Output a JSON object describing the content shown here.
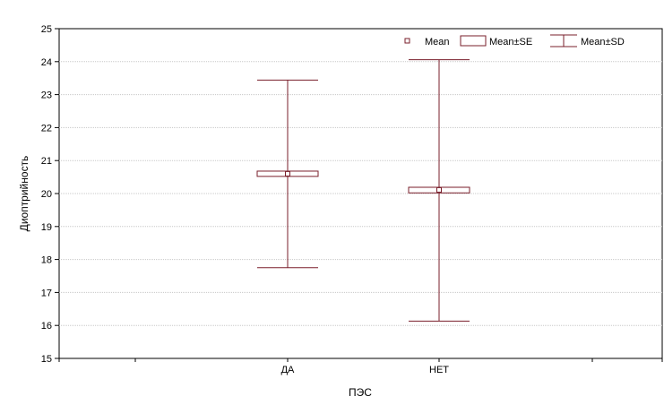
{
  "chart_data": {
    "type": "box",
    "title": "",
    "xlabel": "ПЭС",
    "ylabel": "Диоптрийность",
    "categories": [
      "ДА",
      "НЕТ"
    ],
    "series": [
      {
        "category": "ДА",
        "mean": 20.6,
        "se_low": 20.52,
        "se_high": 20.68,
        "sd_low": 17.75,
        "sd_high": 23.44
      },
      {
        "category": "НЕТ",
        "mean": 20.11,
        "se_low": 20.02,
        "se_high": 20.19,
        "sd_low": 16.13,
        "sd_high": 24.06
      }
    ],
    "ylim": [
      15,
      25
    ],
    "yticks": [
      "15",
      "16",
      "17",
      "18",
      "19",
      "20",
      "21",
      "22",
      "23",
      "24",
      "25"
    ],
    "grid": true,
    "legend_position": "top-right",
    "legend": {
      "mean": "Mean",
      "se": "Mean±SE",
      "sd": "Mean±SD"
    },
    "colors": {
      "series": "#7a1f2b",
      "grid": "#c8c8c8",
      "axis": "#000000"
    }
  }
}
